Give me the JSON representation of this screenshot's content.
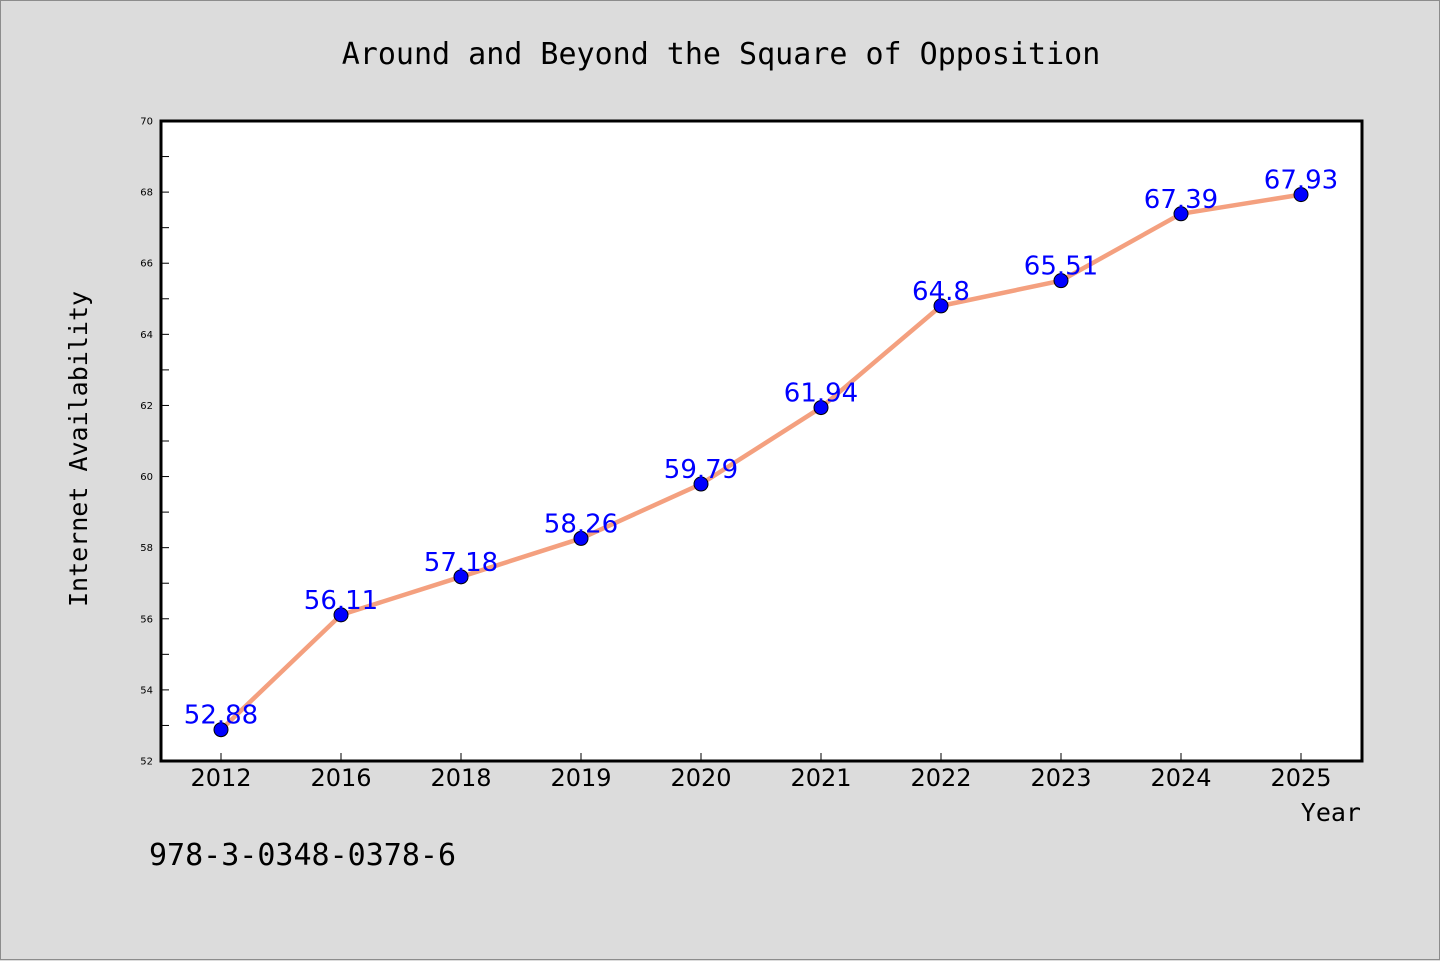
{
  "chart_data": {
    "type": "line",
    "title": "Around and Beyond the Square of Opposition",
    "xlabel": "Year",
    "ylabel": "Internet Availability",
    "categories": [
      "2012",
      "2016",
      "2018",
      "2019",
      "2020",
      "2021",
      "2022",
      "2023",
      "2024",
      "2025"
    ],
    "series": [
      {
        "values": [
          52.88,
          56.11,
          57.18,
          58.26,
          59.79,
          61.94,
          64.8,
          65.51,
          67.39,
          67.93
        ],
        "labels": [
          "52.88",
          "56.11",
          "57.18",
          "58.26",
          "59.79",
          "61.94",
          "64.8",
          "65.51",
          "67.39",
          "67.93"
        ],
        "line_color": "#f4a07f",
        "marker_color": "#0000ff"
      }
    ],
    "ylim": [
      52,
      70
    ],
    "yticks": [
      "52",
      "54",
      "56",
      "58",
      "60",
      "62",
      "64",
      "66",
      "68",
      "70"
    ],
    "grid": false,
    "legend": "none"
  },
  "footer": {
    "isbn": "978-3-0348-0378-6"
  },
  "colors": {
    "background": "#dcdcdc",
    "plot_background": "#ffffff",
    "line": "#f4a07f",
    "marker": "#0000ff",
    "data_label": "#0000ff"
  }
}
